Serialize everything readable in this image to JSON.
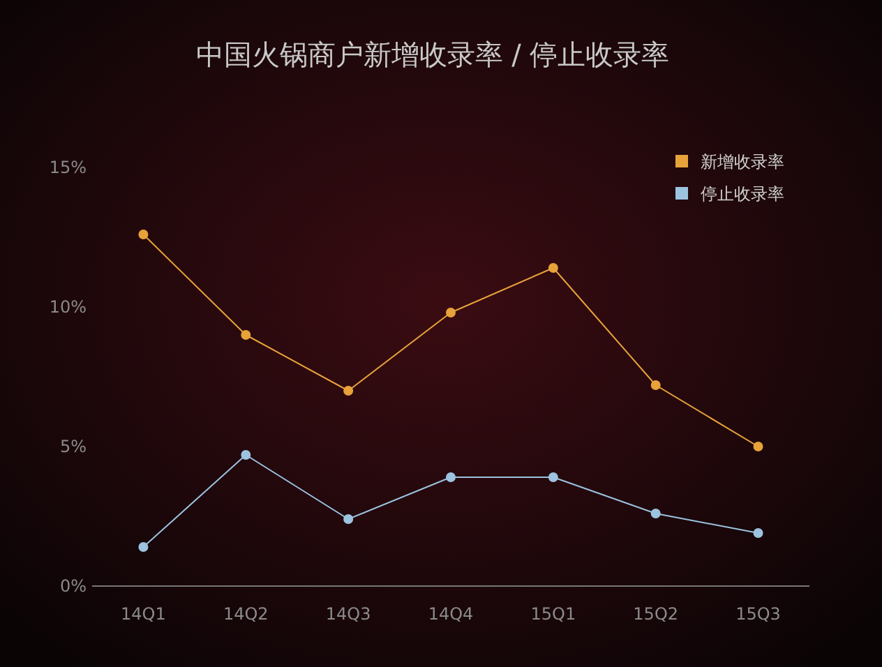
{
  "chart_data": {
    "type": "line",
    "title": "中国火锅商户新增收录率 / 停止收录率",
    "categories": [
      "14Q1",
      "14Q2",
      "14Q3",
      "14Q4",
      "15Q1",
      "15Q2",
      "15Q3"
    ],
    "series": [
      {
        "name": "新增收录率",
        "color": "#e8a23a",
        "values": [
          12.6,
          9.0,
          7.0,
          9.8,
          11.4,
          7.2,
          5.0
        ]
      },
      {
        "name": "停止收录率",
        "color": "#9cc3e0",
        "values": [
          1.4,
          4.7,
          2.4,
          3.9,
          3.9,
          2.6,
          1.9
        ]
      }
    ],
    "ylim": [
      0,
      15
    ],
    "yticks": [
      {
        "value": 0,
        "label": "0%"
      },
      {
        "value": 5,
        "label": "5%"
      },
      {
        "value": 10,
        "label": "10%"
      },
      {
        "value": 15,
        "label": "15%"
      }
    ],
    "grid": false,
    "legend": "top right",
    "marker": "circle",
    "line_style": "solid"
  }
}
